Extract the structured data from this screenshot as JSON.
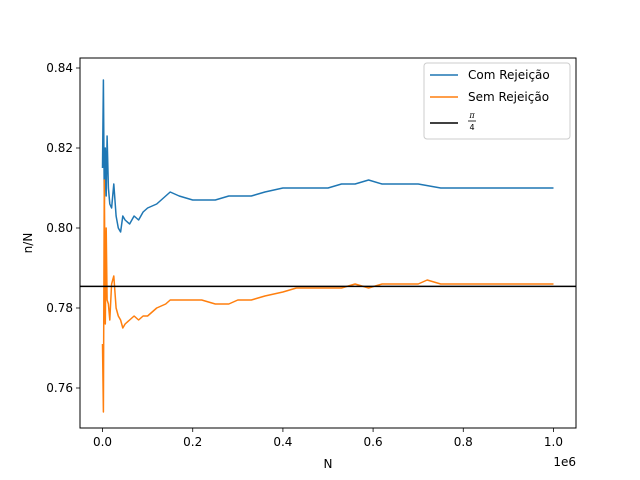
{
  "chart_data": {
    "type": "line",
    "xlabel": "N",
    "ylabel": "n/N",
    "x_offset_label": "1e6",
    "xlim": [
      -0.05,
      1.05
    ],
    "ylim": [
      0.75,
      0.8425
    ],
    "x_scale": 1000000,
    "x_ticks": [
      0.0,
      0.2,
      0.4,
      0.6,
      0.8,
      1.0
    ],
    "x_tick_labels": [
      "0.0",
      "0.2",
      "0.4",
      "0.6",
      "0.8",
      "1.0"
    ],
    "y_ticks": [
      0.76,
      0.78,
      0.8,
      0.82,
      0.84
    ],
    "y_tick_labels": [
      "0.76",
      "0.78",
      "0.80",
      "0.82",
      "0.84"
    ],
    "grid": false,
    "legend_position": "top-right",
    "series": [
      {
        "name": "Com Rejeição",
        "color": "#1f77b4",
        "x": [
          0.0,
          0.002,
          0.004,
          0.006,
          0.008,
          0.01,
          0.013,
          0.016,
          0.02,
          0.025,
          0.03,
          0.035,
          0.04,
          0.045,
          0.05,
          0.06,
          0.07,
          0.08,
          0.09,
          0.1,
          0.12,
          0.14,
          0.15,
          0.17,
          0.2,
          0.22,
          0.25,
          0.28,
          0.3,
          0.33,
          0.36,
          0.4,
          0.43,
          0.46,
          0.5,
          0.53,
          0.56,
          0.59,
          0.62,
          0.65,
          0.7,
          0.75,
          0.8,
          0.85,
          0.9,
          0.95,
          1.0
        ],
        "y": [
          0.815,
          0.837,
          0.806,
          0.82,
          0.808,
          0.823,
          0.81,
          0.806,
          0.805,
          0.811,
          0.803,
          0.8,
          0.799,
          0.803,
          0.802,
          0.801,
          0.803,
          0.802,
          0.804,
          0.805,
          0.806,
          0.808,
          0.809,
          0.808,
          0.807,
          0.807,
          0.807,
          0.808,
          0.808,
          0.808,
          0.809,
          0.81,
          0.81,
          0.81,
          0.81,
          0.811,
          0.811,
          0.812,
          0.811,
          0.811,
          0.811,
          0.81,
          0.81,
          0.81,
          0.81,
          0.81,
          0.81
        ]
      },
      {
        "name": "Sem Rejeição",
        "color": "#ff7f0e",
        "x": [
          0.0,
          0.002,
          0.004,
          0.006,
          0.008,
          0.01,
          0.013,
          0.016,
          0.02,
          0.025,
          0.03,
          0.035,
          0.04,
          0.045,
          0.05,
          0.06,
          0.07,
          0.08,
          0.09,
          0.1,
          0.12,
          0.14,
          0.15,
          0.17,
          0.2,
          0.22,
          0.25,
          0.28,
          0.3,
          0.33,
          0.36,
          0.4,
          0.43,
          0.46,
          0.5,
          0.53,
          0.56,
          0.59,
          0.62,
          0.65,
          0.7,
          0.72,
          0.75,
          0.8,
          0.85,
          0.9,
          0.95,
          1.0
        ],
        "y": [
          0.771,
          0.754,
          0.812,
          0.776,
          0.8,
          0.782,
          0.781,
          0.777,
          0.786,
          0.788,
          0.78,
          0.778,
          0.777,
          0.775,
          0.776,
          0.777,
          0.778,
          0.777,
          0.778,
          0.778,
          0.78,
          0.781,
          0.782,
          0.782,
          0.782,
          0.782,
          0.781,
          0.781,
          0.782,
          0.782,
          0.783,
          0.784,
          0.785,
          0.785,
          0.785,
          0.785,
          0.786,
          0.785,
          0.786,
          0.786,
          0.786,
          0.787,
          0.786,
          0.786,
          0.786,
          0.786,
          0.786,
          0.786
        ]
      }
    ],
    "reference_line": {
      "name": "π/4",
      "legend_numerator": "π",
      "legend_denominator": "4",
      "value": 0.7854,
      "color": "#000000"
    }
  }
}
